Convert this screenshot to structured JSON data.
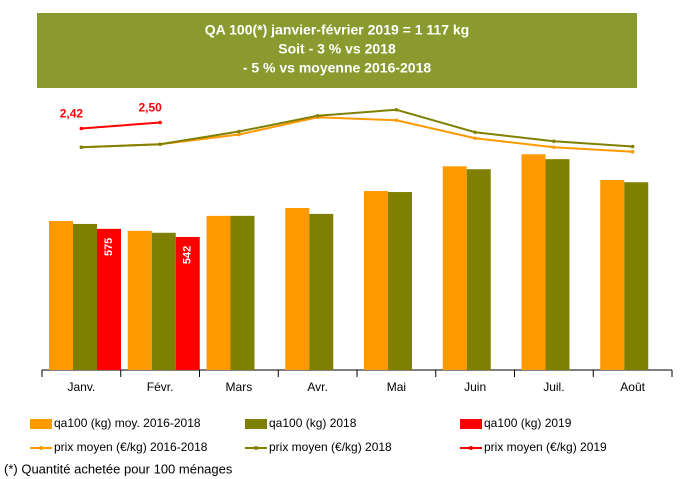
{
  "chart_data": {
    "type": "combo",
    "annotation_box": {
      "lines": [
        "QA 100(*) janvier-février 2019 = 1 117 kg",
        "Soit  - 3 % vs 2018",
        "- 5 % vs moyenne 2016-2018"
      ],
      "color": "#8b9a2e"
    },
    "categories": [
      "Janv.",
      "Févr.",
      "Mars",
      "Avr.",
      "Mai",
      "Juin",
      "Juil.",
      "Août"
    ],
    "ylim": [
      0,
      1100
    ],
    "y2lim": [
      -0.8,
      2.8
    ],
    "series": [
      {
        "name": "qa100 (kg) moy. 2016-2018",
        "type": "bar",
        "color": "#ff9900",
        "values": [
          607,
          567,
          628,
          660,
          729,
          830,
          879,
          774
        ]
      },
      {
        "name": "qa100 (kg) 2018",
        "type": "bar",
        "color": "#808000",
        "values": [
          595,
          559,
          628,
          636,
          725,
          818,
          859,
          765
        ]
      },
      {
        "name": "qa100 (kg) 2019",
        "type": "bar",
        "color": "#ff0000",
        "values": [
          575,
          542,
          null,
          null,
          null,
          null,
          null,
          null
        ],
        "show_labels": true
      },
      {
        "name": "prix moyen (€/kg) 2016-2018",
        "type": "line",
        "axis": "y2",
        "color": "#ff9900",
        "values": [
          2.17,
          2.21,
          2.34,
          2.57,
          2.53,
          2.29,
          2.17,
          2.11
        ]
      },
      {
        "name": "prix moyen (€/kg) 2018",
        "type": "line",
        "axis": "y2",
        "color": "#808000",
        "values": [
          2.17,
          2.21,
          2.38,
          2.59,
          2.67,
          2.37,
          2.25,
          2.18
        ]
      },
      {
        "name": "prix moyen (€/kg) 2019",
        "type": "line",
        "axis": "y2",
        "color": "#ff0000",
        "values": [
          2.42,
          2.5,
          null,
          null,
          null,
          null,
          null,
          null
        ],
        "value_labels": [
          "2,42",
          "2,50",
          null,
          null,
          null,
          null,
          null,
          null
        ]
      }
    ],
    "footnote": "(*) Quantité achetée pour 100 ménages"
  }
}
